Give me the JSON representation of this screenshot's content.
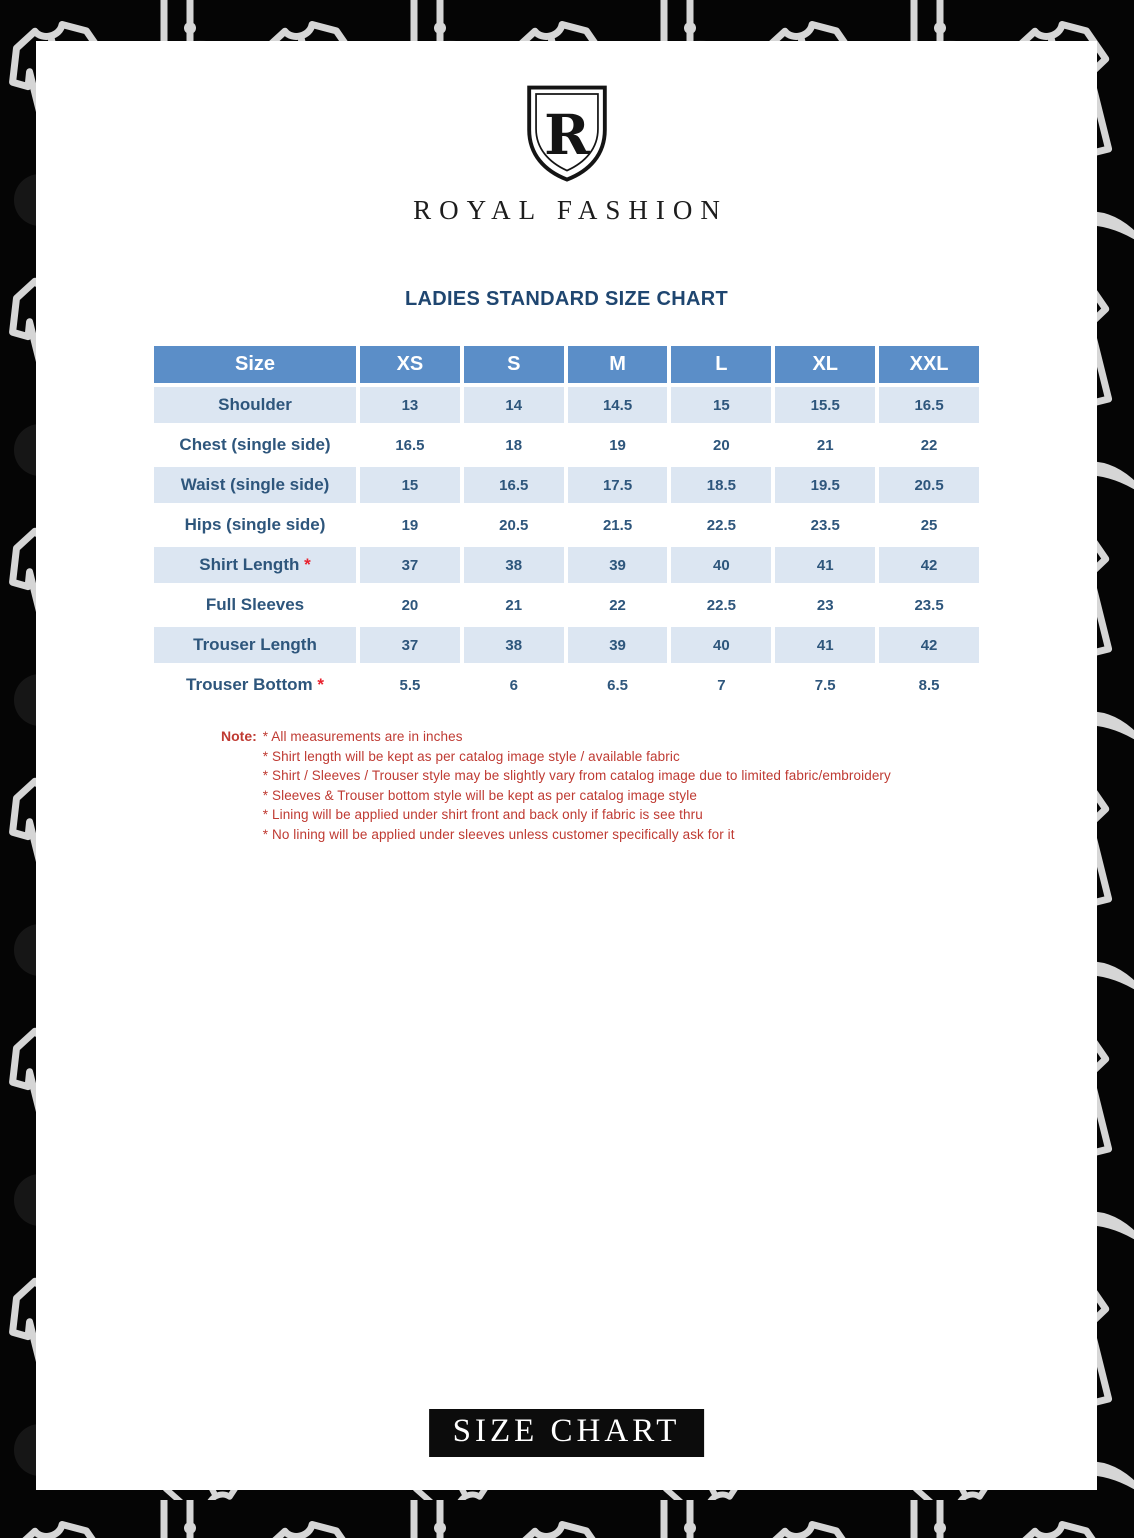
{
  "page": {
    "brand": {
      "monogram": "R",
      "name": "ROYAL FASHION"
    },
    "title": "LADIES STANDARD SIZE CHART",
    "table": {
      "columns": [
        "Size",
        "XS",
        "S",
        "M",
        "L",
        "XL",
        "XXL"
      ],
      "rows": [
        {
          "label": "Shoulder",
          "asterisk": false,
          "values": [
            "13",
            "14",
            "14.5",
            "15",
            "15.5",
            "16.5"
          ]
        },
        {
          "label": "Chest (single side)",
          "asterisk": false,
          "values": [
            "16.5",
            "18",
            "19",
            "20",
            "21",
            "22"
          ]
        },
        {
          "label": "Waist (single side)",
          "asterisk": false,
          "values": [
            "15",
            "16.5",
            "17.5",
            "18.5",
            "19.5",
            "20.5"
          ]
        },
        {
          "label": "Hips (single side)",
          "asterisk": false,
          "values": [
            "19",
            "20.5",
            "21.5",
            "22.5",
            "23.5",
            "25"
          ]
        },
        {
          "label": "Shirt Length",
          "asterisk": true,
          "values": [
            "37",
            "38",
            "39",
            "40",
            "41",
            "42"
          ]
        },
        {
          "label": "Full Sleeves",
          "asterisk": false,
          "values": [
            "20",
            "21",
            "22",
            "22.5",
            "23",
            "23.5"
          ]
        },
        {
          "label": "Trouser Length",
          "asterisk": false,
          "values": [
            "37",
            "38",
            "39",
            "40",
            "41",
            "42"
          ]
        },
        {
          "label": "Trouser Bottom",
          "asterisk": true,
          "values": [
            "5.5",
            "6",
            "6.5",
            "7",
            "7.5",
            "8.5"
          ]
        }
      ]
    },
    "notes": {
      "label": "Note:",
      "items": [
        "* All measurements  are in inches",
        "* Shirt  length will be kept  as per catalog image  style / available fabric",
        "* Shirt  / Sleeves / Trouser style may be slightly vary from  catalog image due to limited fabric/embroidery",
        "* Sleeves & Trouser bottom  style will be kept  as per catalog image style",
        "* Lining will be applied under  shirt front  and back only if fabric is see thru",
        "* No lining will be applied under  sleeves unless customer  specifically ask for it"
      ]
    },
    "footer_banner": "SIZE CHART",
    "colors": {
      "header_blue": "#5b8ec8",
      "row_light_blue": "#dce6f2",
      "cell_text_blue": "#2e567c",
      "title_navy": "#1f4670",
      "note_red": "#bf3a32",
      "asterisk_red": "#e8212d",
      "banner_black": "#0c0c0c"
    }
  }
}
